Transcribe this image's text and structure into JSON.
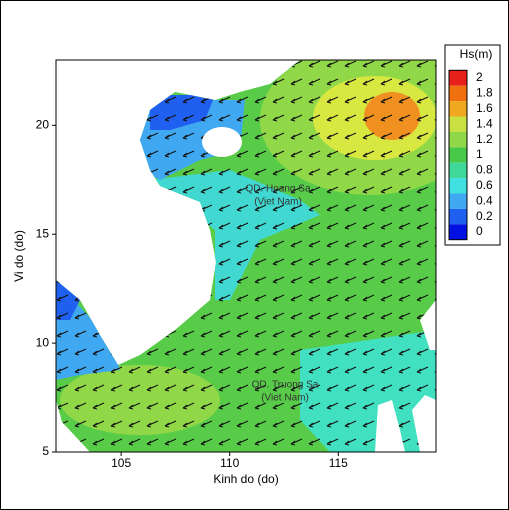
{
  "chart_data": {
    "type": "map",
    "xlabel": "Kinh do (do)",
    "ylabel": "Vi do (do)",
    "xlim": [
      102,
      119.5
    ],
    "ylim": [
      5,
      23
    ],
    "xticks": [
      105,
      110,
      115
    ],
    "yticks": [
      5,
      10,
      15,
      20
    ],
    "colorbar": {
      "title": "Hs(m)",
      "ticks": [
        2,
        1.8,
        1.6,
        1.4,
        1.2,
        1,
        0.8,
        0.6,
        0.4,
        0.2,
        0
      ],
      "colors": [
        "#e8201a",
        "#f07010",
        "#f0a820",
        "#c8e040",
        "#90d848",
        "#48c848",
        "#40d898",
        "#40e0e0",
        "#40a8f0",
        "#2060f0",
        "#0010e0"
      ]
    },
    "annotations": [
      [
        "QD. Hoang Sa",
        "(Viet Nam)"
      ],
      [
        "QD. Truong Sa",
        "(Viet Nam)"
      ]
    ]
  }
}
